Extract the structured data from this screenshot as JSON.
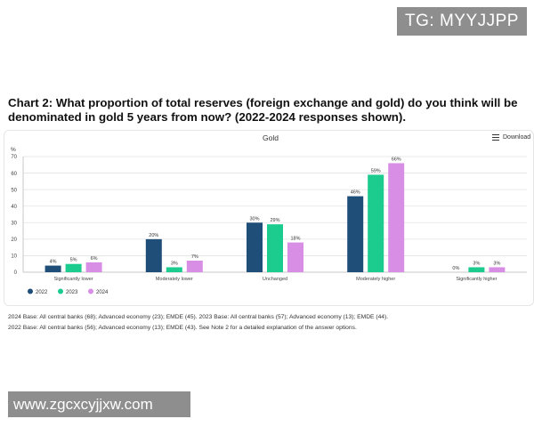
{
  "watermark_top": "TG: MYYJJPP",
  "watermark_bottom": "www.zgcxcyjjxw.com",
  "download_label": "Download",
  "notes": [
    "2024 Base: All central banks (68); Advanced economy (23); EMDE (45). 2023 Base: All central banks (57); Advanced economy (13); EMDE (44).",
    "2022 Base: All central banks (56); Advanced economy (13); EMDE (43). See Note 2 for a detailed explanation of the answer options."
  ],
  "chart_data": {
    "type": "bar",
    "title": "Chart 2: What proportion of total reserves (foreign exchange and gold) do you think will be denominated in gold 5 years from now? (2022-2024 responses shown).",
    "subtitle": "Gold",
    "ylabel": "%",
    "ylim": [
      0,
      70
    ],
    "yticks": [
      0,
      10,
      20,
      30,
      40,
      50,
      60,
      70
    ],
    "grid": true,
    "legend": "bottom-left",
    "categories": [
      "Significantly lower",
      "Moderately lower",
      "Unchanged",
      "Moderately higher",
      "Significantly higher"
    ],
    "series": [
      {
        "name": "2022",
        "color": "#1f4e79",
        "values": [
          4,
          20,
          30,
          46,
          0
        ],
        "labels": [
          "4%",
          "20%",
          "30%",
          "46%",
          "0%"
        ]
      },
      {
        "name": "2023",
        "color": "#1ccb8e",
        "values": [
          5,
          3,
          29,
          59,
          3
        ],
        "labels": [
          "5%",
          "3%",
          "29%",
          "59%",
          "3%"
        ]
      },
      {
        "name": "2024",
        "color": "#d98ee6",
        "values": [
          6,
          7,
          18,
          66,
          3
        ],
        "labels": [
          "6%",
          "7%",
          "18%",
          "66%",
          "3%"
        ]
      }
    ]
  }
}
